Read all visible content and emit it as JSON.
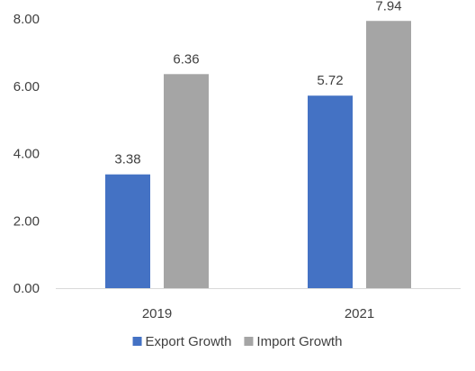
{
  "chart_data": {
    "type": "bar",
    "categories": [
      "2019",
      "2021"
    ],
    "series": [
      {
        "name": "Export Growth",
        "values": [
          3.38,
          5.72
        ],
        "color": "#4472C4"
      },
      {
        "name": "Import Growth",
        "values": [
          6.36,
          7.94
        ],
        "color": "#A5A5A5"
      }
    ],
    "value_labels": [
      [
        "3.38",
        "5.72"
      ],
      [
        "6.36",
        "7.94"
      ]
    ],
    "ylim": [
      0,
      8
    ],
    "yticks": [
      "0.00",
      "2.00",
      "4.00",
      "6.00",
      "8.00"
    ],
    "grid": false,
    "legend_position": "bottom",
    "axis_color": "#D9D9D9"
  }
}
